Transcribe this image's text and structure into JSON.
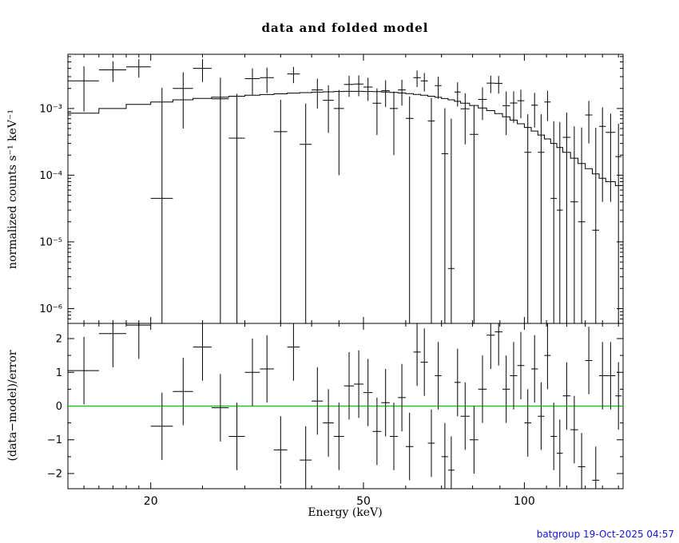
{
  "footer": {
    "text": "batgroup 19-Oct-2025 04:57",
    "color": "#1515dd"
  },
  "chart_data": {
    "type": "scatter",
    "title": "data and folded model",
    "xlabel": "Energy (keV)",
    "xscale": "log",
    "xlim": [
      14,
      153
    ],
    "xticks": [
      {
        "v": 20,
        "label": "20"
      },
      {
        "v": 50,
        "label": "50"
      },
      {
        "v": 100,
        "label": "100"
      }
    ],
    "top_panel": {
      "ylabel": "normalized counts s⁻¹ keV⁻¹",
      "yscale": "log",
      "ylim": [
        6e-07,
        0.0065
      ],
      "yticks": [
        {
          "v": 0.001,
          "label": "10⁻³"
        },
        {
          "v": 0.0001,
          "label": "10⁻⁴"
        },
        {
          "v": 1e-05,
          "label": "10⁻⁵"
        },
        {
          "v": 1e-06,
          "label": "10⁻⁶"
        }
      ]
    },
    "bottom_panel": {
      "ylabel": "(data−model)/error",
      "ylim": [
        -2.45,
        2.45
      ],
      "yticks": [
        {
          "v": -2,
          "label": "−2"
        },
        {
          "v": -1,
          "label": "−1"
        },
        {
          "v": 0,
          "label": "0"
        },
        {
          "v": 1,
          "label": "1"
        },
        {
          "v": 2,
          "label": "2"
        }
      ],
      "zero_line_color": "#00c400"
    },
    "point_columns": [
      "energy_keV",
      "half_width_keV",
      "rate",
      "rate_err",
      "model",
      "resid_sigma"
    ],
    "points": [
      [
        15,
        1,
        0.0026,
        0.0017,
        0.00085,
        1.05
      ],
      [
        17,
        1,
        0.0038,
        0.0013,
        0.001,
        2.15
      ],
      [
        19,
        1,
        0.0042,
        0.0013,
        0.00115,
        2.4
      ],
      [
        21,
        1,
        4.5e-05,
        0.002,
        0.00125,
        -0.6
      ],
      [
        23,
        1,
        0.002,
        0.0015,
        0.00135,
        0.43
      ],
      [
        25,
        1,
        0.004,
        0.0015,
        0.00142,
        1.75
      ],
      [
        27,
        1,
        0.0014,
        0.0015,
        0.00148,
        -0.05
      ],
      [
        29,
        1,
        0.00036,
        0.0013,
        0.00153,
        -0.9
      ],
      [
        31,
        1,
        0.0028,
        0.0012,
        0.00158,
        1.0
      ],
      [
        33,
        1,
        0.0029,
        0.0012,
        0.00162,
        1.1
      ],
      [
        35,
        1,
        0.00045,
        0.0009,
        0.00166,
        -1.3
      ],
      [
        37,
        1,
        0.0033,
        0.0009,
        0.0017,
        1.75
      ],
      [
        39,
        1,
        0.00029,
        0.0009,
        0.00173,
        -1.6
      ],
      [
        41,
        1,
        0.0019,
        0.0009,
        0.00176,
        0.15
      ],
      [
        43,
        1,
        0.00133,
        0.0009,
        0.00178,
        -0.5
      ],
      [
        45,
        1,
        0.001,
        0.0009,
        0.0018,
        -0.9
      ],
      [
        47,
        1,
        0.0023,
        0.0008,
        0.00181,
        0.6
      ],
      [
        49,
        1,
        0.00233,
        0.0008,
        0.00181,
        0.65
      ],
      [
        51,
        1,
        0.0021,
        0.0008,
        0.0018,
        0.4
      ],
      [
        53,
        1,
        0.0012,
        0.0008,
        0.00179,
        -0.75
      ],
      [
        55,
        1,
        0.00185,
        0.0008,
        0.00177,
        0.1
      ],
      [
        57,
        1,
        0.001,
        0.0008,
        0.00174,
        -0.9
      ],
      [
        59,
        1,
        0.0019,
        0.0008,
        0.00171,
        0.25
      ],
      [
        61,
        1,
        0.00071,
        0.0008,
        0.00167,
        -1.2
      ],
      [
        63,
        1,
        0.0029,
        0.0008,
        0.00163,
        1.6
      ],
      [
        65,
        1,
        0.0026,
        0.0008,
        0.00158,
        1.3
      ],
      [
        67,
        1,
        0.00065,
        0.0008,
        0.00153,
        -1.1
      ],
      [
        69,
        1,
        0.0022,
        0.0008,
        0.00147,
        0.9
      ],
      [
        71,
        1,
        0.00021,
        0.0008,
        0.00141,
        -1.5
      ],
      [
        73,
        1,
        4e-06,
        0.0007,
        0.00135,
        -1.9
      ],
      [
        75,
        1,
        0.00177,
        0.0007,
        0.00128,
        0.7
      ],
      [
        77.5,
        1.5,
        0.00099,
        0.0007,
        0.0012,
        -0.3
      ],
      [
        80.5,
        1.5,
        0.00041,
        0.0007,
        0.00111,
        -1.0
      ],
      [
        83.5,
        1.5,
        0.00137,
        0.0007,
        0.00102,
        0.5
      ],
      [
        86.5,
        1.5,
        0.0024,
        0.0007,
        0.00093,
        2.1
      ],
      [
        89.5,
        1.5,
        0.00238,
        0.0007,
        0.00084,
        2.2
      ],
      [
        92.5,
        1.5,
        0.0011,
        0.0007,
        0.00075,
        0.5
      ],
      [
        95.5,
        1.5,
        0.00121,
        0.0006,
        0.00067,
        0.9
      ],
      [
        98.5,
        1.5,
        0.00131,
        0.0006,
        0.00059,
        1.2
      ],
      [
        101.5,
        1.5,
        0.00022,
        0.0006,
        0.00052,
        -0.5
      ],
      [
        104.5,
        1.5,
        0.00112,
        0.0006,
        0.00046,
        1.1
      ],
      [
        107.5,
        1.5,
        0.00022,
        0.0006,
        0.0004,
        -0.3
      ],
      [
        110.5,
        1.5,
        0.00125,
        0.0006,
        0.00035,
        1.5
      ],
      [
        113.5,
        1.5,
        4.5e-05,
        0.0006,
        0.0003,
        -0.9
      ],
      [
        116.5,
        1.5,
        3e-05,
        0.0006,
        0.00026,
        -1.4
      ],
      [
        120,
        2,
        0.00037,
        0.0005,
        0.00022,
        0.3
      ],
      [
        124,
        2,
        4e-05,
        0.0005,
        0.00018,
        -0.7
      ],
      [
        128,
        2,
        2e-05,
        0.0005,
        0.00015,
        -1.8
      ],
      [
        132,
        2,
        0.0008,
        0.0005,
        0.000125,
        1.35
      ],
      [
        136,
        2,
        1.5e-05,
        0.0005,
        0.000105,
        -2.2
      ],
      [
        140,
        2,
        0.00054,
        0.0005,
        9e-05,
        0.9
      ],
      [
        145,
        3,
        0.00044,
        0.0004,
        8e-05,
        0.9
      ],
      [
        150,
        2,
        0.00019,
        0.0004,
        7e-05,
        0.3
      ]
    ]
  }
}
